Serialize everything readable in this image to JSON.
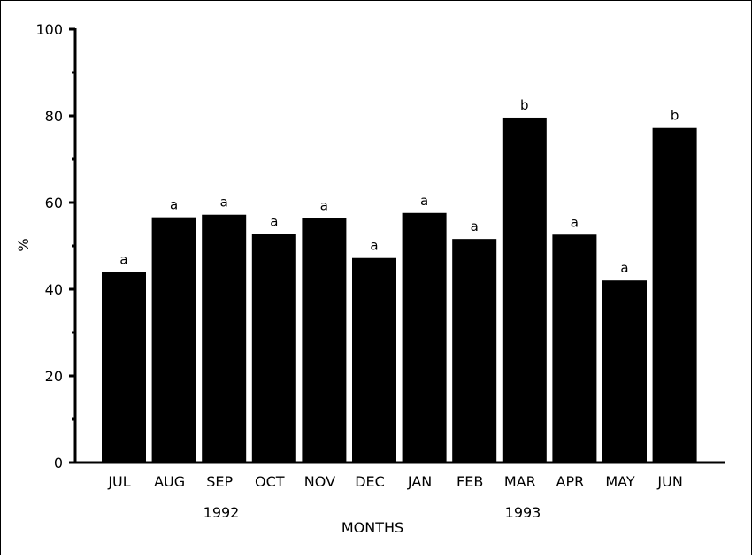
{
  "chart_data": {
    "type": "bar",
    "title": "",
    "xlabel": "MONTHS",
    "ylabel": "%",
    "ylim": [
      0,
      100
    ],
    "yticks": [
      0,
      20,
      40,
      60,
      80,
      100
    ],
    "grid": false,
    "categories": [
      "JUL",
      "AUG",
      "SEP",
      "OCT",
      "NOV",
      "DEC",
      "JAN",
      "FEB",
      "MAR",
      "APR",
      "MAY",
      "JUN"
    ],
    "values": [
      44,
      56.6,
      57.2,
      52.8,
      56.4,
      47.2,
      57.6,
      51.6,
      79.6,
      52.6,
      42,
      77.2
    ],
    "bar_labels": [
      "a",
      "a",
      "a",
      "a",
      "a",
      "a",
      "a",
      "a",
      "b",
      "a",
      "a",
      "b"
    ],
    "year_labels": [
      "1992",
      "1993"
    ],
    "bar_color": "#000000"
  }
}
